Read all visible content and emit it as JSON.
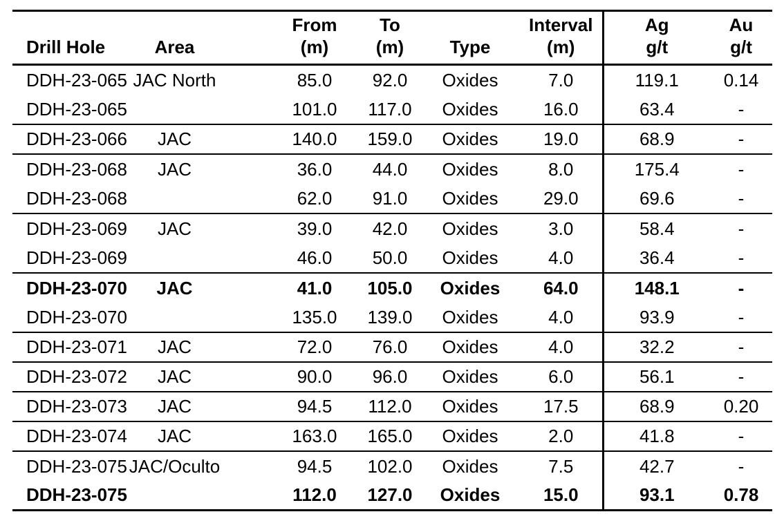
{
  "colors": {
    "background": "#ffffff",
    "text": "#000000",
    "rule": "#000000"
  },
  "table": {
    "name": "drill-hole-assay-results",
    "columns": [
      {
        "id": "drill_hole",
        "header_line1": "",
        "header_line2": "Drill Hole"
      },
      {
        "id": "area",
        "header_line1": "",
        "header_line2": "Area"
      },
      {
        "id": "from",
        "header_line1": "From",
        "header_line2": "(m)"
      },
      {
        "id": "to",
        "header_line1": "To",
        "header_line2": "(m)"
      },
      {
        "id": "type",
        "header_line1": "",
        "header_line2": "Type"
      },
      {
        "id": "interval",
        "header_line1": "Interval",
        "header_line2": "(m)"
      },
      {
        "id": "ag",
        "header_line1": "Ag",
        "header_line2": "g/t"
      },
      {
        "id": "au",
        "header_line1": "Au",
        "header_line2": "g/t"
      }
    ],
    "rows": [
      {
        "drill_hole": "DDH-23-065",
        "area": "JAC North",
        "from": "85.0",
        "to": "92.0",
        "type": "Oxides",
        "interval": "7.0",
        "ag": "119.1",
        "au": "0.14",
        "bold": false,
        "group_end": false
      },
      {
        "drill_hole": "DDH-23-065",
        "area": "",
        "from": "101.0",
        "to": "117.0",
        "type": "Oxides",
        "interval": "16.0",
        "ag": "63.4",
        "au": "-",
        "bold": false,
        "group_end": true
      },
      {
        "drill_hole": "DDH-23-066",
        "area": "JAC",
        "from": "140.0",
        "to": "159.0",
        "type": "Oxides",
        "interval": "19.0",
        "ag": "68.9",
        "au": "-",
        "bold": false,
        "group_end": true
      },
      {
        "drill_hole": "DDH-23-068",
        "area": "JAC",
        "from": "36.0",
        "to": "44.0",
        "type": "Oxides",
        "interval": "8.0",
        "ag": "175.4",
        "au": "-",
        "bold": false,
        "group_end": false
      },
      {
        "drill_hole": "DDH-23-068",
        "area": "",
        "from": "62.0",
        "to": "91.0",
        "type": "Oxides",
        "interval": "29.0",
        "ag": "69.6",
        "au": "-",
        "bold": false,
        "group_end": true
      },
      {
        "drill_hole": "DDH-23-069",
        "area": "JAC",
        "from": "39.0",
        "to": "42.0",
        "type": "Oxides",
        "interval": "3.0",
        "ag": "58.4",
        "au": "-",
        "bold": false,
        "group_end": false
      },
      {
        "drill_hole": "DDH-23-069",
        "area": "",
        "from": "46.0",
        "to": "50.0",
        "type": "Oxides",
        "interval": "4.0",
        "ag": "36.4",
        "au": "-",
        "bold": false,
        "group_end": true
      },
      {
        "drill_hole": "DDH-23-070",
        "area": "JAC",
        "from": "41.0",
        "to": "105.0",
        "type": "Oxides",
        "interval": "64.0",
        "ag": "148.1",
        "au": "-",
        "bold": true,
        "group_end": false
      },
      {
        "drill_hole": "DDH-23-070",
        "area": "",
        "from": "135.0",
        "to": "139.0",
        "type": "Oxides",
        "interval": "4.0",
        "ag": "93.9",
        "au": "-",
        "bold": false,
        "group_end": true
      },
      {
        "drill_hole": "DDH-23-071",
        "area": "JAC",
        "from": "72.0",
        "to": "76.0",
        "type": "Oxides",
        "interval": "4.0",
        "ag": "32.2",
        "au": "-",
        "bold": false,
        "group_end": true
      },
      {
        "drill_hole": "DDH-23-072",
        "area": "JAC",
        "from": "90.0",
        "to": "96.0",
        "type": "Oxides",
        "interval": "6.0",
        "ag": "56.1",
        "au": "-",
        "bold": false,
        "group_end": true
      },
      {
        "drill_hole": "DDH-23-073",
        "area": "JAC",
        "from": "94.5",
        "to": "112.0",
        "type": "Oxides",
        "interval": "17.5",
        "ag": "68.9",
        "au": "0.20",
        "bold": false,
        "group_end": true
      },
      {
        "drill_hole": "DDH-23-074",
        "area": "JAC",
        "from": "163.0",
        "to": "165.0",
        "type": "Oxides",
        "interval": "2.0",
        "ag": "41.8",
        "au": "-",
        "bold": false,
        "group_end": true
      },
      {
        "drill_hole": "DDH-23-075",
        "area": "JAC/Oculto",
        "from": "94.5",
        "to": "102.0",
        "type": "Oxides",
        "interval": "7.5",
        "ag": "42.7",
        "au": "-",
        "bold": false,
        "group_end": false
      },
      {
        "drill_hole": "DDH-23-075",
        "area": "",
        "from": "112.0",
        "to": "127.0",
        "type": "Oxides",
        "interval": "15.0",
        "ag": "93.1",
        "au": "0.78",
        "bold": true,
        "group_end": false
      }
    ]
  }
}
